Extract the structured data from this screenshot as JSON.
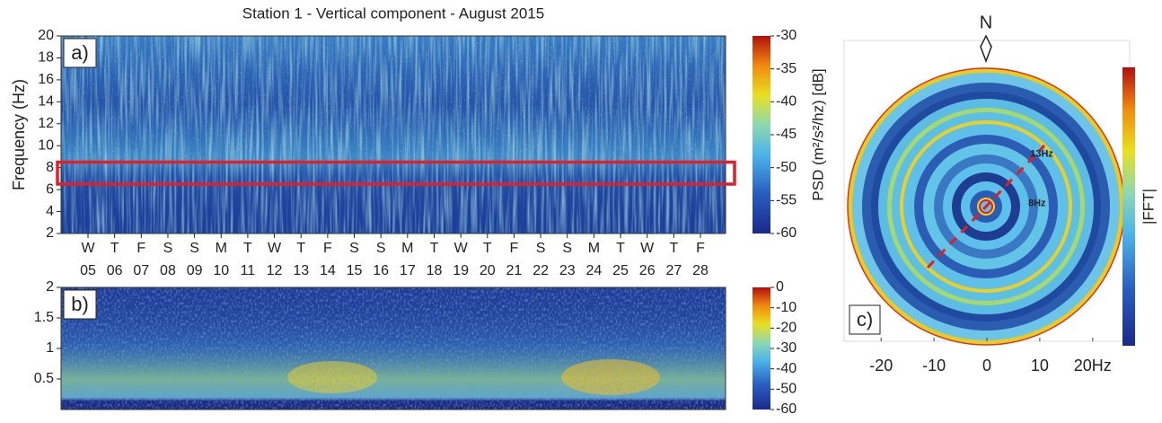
{
  "chart_data": [
    {
      "type": "spectrogram",
      "title": "Station 1 - Vertical component - August 2015",
      "panel_label": "a)",
      "y_label": "Frequency (Hz)",
      "ylim": [
        2,
        20
      ],
      "yticks": [
        2,
        4,
        6,
        8,
        10,
        12,
        14,
        16,
        18,
        20
      ],
      "highlight_band": [
        6.5,
        8.5
      ],
      "highlight_color": "#e0202a",
      "weekend_color": "#d42020",
      "days": [
        {
          "weekday": "W",
          "date": "05",
          "weekend": false
        },
        {
          "weekday": "T",
          "date": "06",
          "weekend": false
        },
        {
          "weekday": "F",
          "date": "07",
          "weekend": false
        },
        {
          "weekday": "S",
          "date": "08",
          "weekend": true
        },
        {
          "weekday": "S",
          "date": "09",
          "weekend": true
        },
        {
          "weekday": "M",
          "date": "10",
          "weekend": false
        },
        {
          "weekday": "T",
          "date": "11",
          "weekend": false
        },
        {
          "weekday": "W",
          "date": "12",
          "weekend": false
        },
        {
          "weekday": "T",
          "date": "13",
          "weekend": false
        },
        {
          "weekday": "F",
          "date": "14",
          "weekend": false
        },
        {
          "weekday": "S",
          "date": "15",
          "weekend": true
        },
        {
          "weekday": "S",
          "date": "16",
          "weekend": true
        },
        {
          "weekday": "M",
          "date": "17",
          "weekend": false
        },
        {
          "weekday": "T",
          "date": "18",
          "weekend": false
        },
        {
          "weekday": "W",
          "date": "19",
          "weekend": false
        },
        {
          "weekday": "T",
          "date": "20",
          "weekend": false
        },
        {
          "weekday": "F",
          "date": "21",
          "weekend": false
        },
        {
          "weekday": "S",
          "date": "22",
          "weekend": true
        },
        {
          "weekday": "S",
          "date": "23",
          "weekend": true
        },
        {
          "weekday": "M",
          "date": "24",
          "weekend": false
        },
        {
          "weekday": "T",
          "date": "25",
          "weekend": false
        },
        {
          "weekday": "W",
          "date": "26",
          "weekend": false
        },
        {
          "weekday": "T",
          "date": "27",
          "weekend": false
        },
        {
          "weekday": "F",
          "date": "28",
          "weekend": false
        }
      ],
      "colorbar": {
        "label": "PSD  (m²/s²/hz) [dB]",
        "lim": [
          -60,
          -30
        ],
        "ticks": [
          -30,
          -35,
          -40,
          -45,
          -50,
          -55,
          -60
        ]
      }
    },
    {
      "type": "spectrogram",
      "panel_label": "b)",
      "ylim": [
        0,
        2
      ],
      "yticks": [
        0.5,
        1,
        1.5,
        2
      ],
      "colorbar": {
        "lim": [
          -60,
          0
        ],
        "ticks": [
          0,
          -10,
          -20,
          -30,
          -40,
          -50,
          -60
        ]
      }
    },
    {
      "type": "polar",
      "panel_label": "c)",
      "north_label": "N",
      "xlim": [
        -27,
        27
      ],
      "xticks": [
        -20,
        -10,
        0,
        10,
        {
          "value": 20,
          "label": "20Hz"
        }
      ],
      "annotations": [
        {
          "text": "13Hz",
          "value": 13
        },
        {
          "text": "8Hz",
          "value": 8
        }
      ],
      "annotation_color": "#e0202a",
      "colorbar": {
        "label": "|FFT|"
      }
    }
  ]
}
